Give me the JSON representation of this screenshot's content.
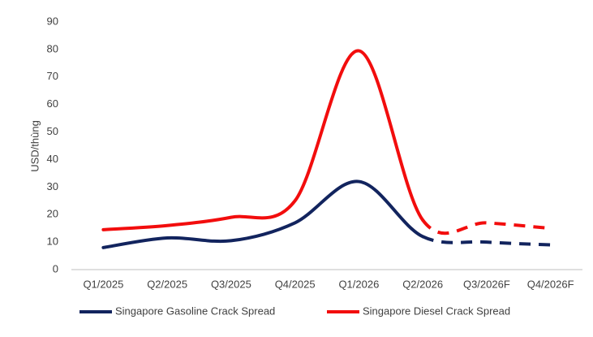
{
  "chart_data": {
    "type": "line",
    "y_label": "USD/thùng",
    "categories": [
      "Q1/2025",
      "Q2/2025",
      "Q3/2025",
      "Q4/2025",
      "Q1/2026",
      "Q2/2026",
      "Q3/2026F",
      "Q4/2026F"
    ],
    "series": [
      {
        "name": "Singapore Gasoline Crack Spread",
        "color": "#12245e",
        "values": [
          8,
          11.5,
          10.5,
          17,
          32,
          12,
          10,
          9
        ]
      },
      {
        "name": "Singapore Diesel Crack Spread",
        "color": "#f20d0d",
        "values": [
          14.5,
          16,
          19,
          25,
          79.5,
          18,
          17,
          15
        ]
      }
    ],
    "dashed_after": "Q2/2026",
    "ylim": [
      0,
      90
    ],
    "yticks": [
      0,
      10,
      20,
      30,
      40,
      50,
      60,
      70,
      80,
      90
    ],
    "grid": false,
    "legend": "bottom"
  }
}
